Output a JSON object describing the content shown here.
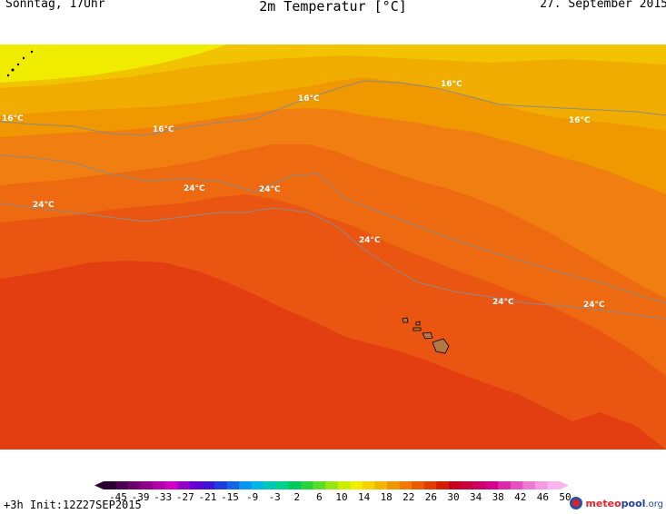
{
  "header": {
    "day_time": "Sonntag, 17Uhr",
    "title": "2m Temperatur [°C]",
    "date": "27. September 2015"
  },
  "map": {
    "isotherm_labels": [
      "16°C",
      "16°C",
      "16°C",
      "16°C",
      "16°C",
      "24°C",
      "24°C",
      "24°C",
      "24°C",
      "24°C",
      "24°C",
      "24°C"
    ],
    "colors": {
      "band_yellow": "#f0ec00",
      "band_14": "#f2c300",
      "band_16": "#f0ad00",
      "band_18": "#f09800",
      "band_20": "#f07e10",
      "band_22": "#ee6a10",
      "band_24": "#ea5512",
      "band_26": "#e33d12",
      "isotherm": "#8a8a8a",
      "land": "#b37840"
    }
  },
  "legend": {
    "ticks": [
      "-45",
      "-39",
      "-33",
      "-27",
      "-21",
      "-15",
      "-9",
      "-3",
      "2",
      "6",
      "10",
      "14",
      "18",
      "22",
      "26",
      "30",
      "34",
      "38",
      "42",
      "46",
      "50"
    ],
    "colors": [
      "#2a0030",
      "#4a0050",
      "#6d006d",
      "#8f008a",
      "#b400aa",
      "#cf00c3",
      "#9400c8",
      "#6400d2",
      "#3c14d8",
      "#1e3cdc",
      "#1464e6",
      "#0a96f0",
      "#00b4e6",
      "#00c8b4",
      "#00d28c",
      "#00c85a",
      "#28d23c",
      "#5adc28",
      "#96e614",
      "#c8ee00",
      "#f0ee00",
      "#f5d200",
      "#f2b400",
      "#f09600",
      "#ef7a00",
      "#ea5a00",
      "#e23c00",
      "#d21e00",
      "#c8001e",
      "#c8003c",
      "#cc0064",
      "#d2008c",
      "#dc28aa",
      "#e650be",
      "#ee78d2",
      "#f59ae2",
      "#fab4ee"
    ]
  },
  "footer": {
    "run_info": "+3h  Init:12Z27SEP2015",
    "logo_part1": "meteo",
    "logo_part2": "pool",
    "logo_part3": ".org"
  }
}
